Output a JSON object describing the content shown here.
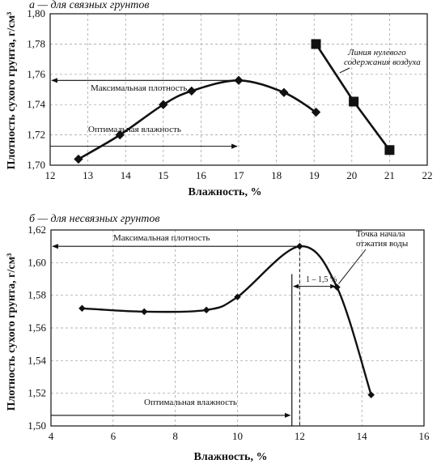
{
  "chart_data": [
    {
      "type": "line",
      "panel_title": "а — для связных грунтов",
      "xlabel": "Влажность, %",
      "ylabel": "Плотность сухого грунта, г/см³",
      "xlim": [
        12,
        22
      ],
      "ylim": [
        1.7,
        1.8
      ],
      "x_ticks": [
        "12",
        "13",
        "14",
        "15",
        "16",
        "17",
        "18",
        "19",
        "20",
        "21",
        "22"
      ],
      "y_ticks": [
        "1,70",
        "1,72",
        "1,74",
        "1,76",
        "1,78",
        "1,80"
      ],
      "grid": true,
      "series": [
        {
          "name": "",
          "marker": "diamond",
          "points": [
            [
              12.75,
              1.704
            ],
            [
              13.85,
              1.72
            ],
            [
              15.0,
              1.74
            ],
            [
              15.75,
              1.749
            ],
            [
              17.0,
              1.756
            ],
            [
              18.2,
              1.748
            ],
            [
              19.05,
              1.735
            ]
          ]
        },
        {
          "name": "Линия нулевого содержания воздуха",
          "marker": "square",
          "points": [
            [
              19.05,
              1.78
            ],
            [
              20.05,
              1.742
            ],
            [
              21.0,
              1.71
            ]
          ]
        }
      ],
      "annotations": [
        {
          "text": "Максимальная плотность",
          "y": 1.756
        },
        {
          "text": "Оптимальная влажность",
          "x": 17.0
        },
        {
          "text_lines": [
            "Линия нулевого",
            "содержания воздуха"
          ]
        }
      ]
    },
    {
      "type": "line",
      "panel_title": "б — для несвязных грунтов",
      "xlabel": "Влажность, %",
      "ylabel": "Плотность сухого грунта, г/см³",
      "xlim": [
        4,
        16
      ],
      "ylim": [
        1.5,
        1.62
      ],
      "x_ticks": [
        "4",
        "6",
        "8",
        "10",
        "12",
        "14",
        "16"
      ],
      "y_ticks": [
        "1,50",
        "1,52",
        "1,54",
        "1,56",
        "1,58",
        "1,60",
        "1,62"
      ],
      "grid": true,
      "series": [
        {
          "name": "",
          "marker": "diamond",
          "points": [
            [
              5.0,
              1.572
            ],
            [
              7.0,
              1.57
            ],
            [
              9.0,
              1.571
            ],
            [
              10.0,
              1.579
            ],
            [
              12.0,
              1.61
            ],
            [
              13.2,
              1.585
            ],
            [
              14.3,
              1.519
            ]
          ]
        }
      ],
      "annotations": [
        {
          "text": "Максимальная плотность",
          "y": 1.61
        },
        {
          "text": "Оптимальная влажность",
          "x": 11.75
        },
        {
          "text": "1 – 1,5 %"
        },
        {
          "text_lines": [
            "Точка начала",
            "отжатия воды"
          ]
        }
      ]
    }
  ]
}
